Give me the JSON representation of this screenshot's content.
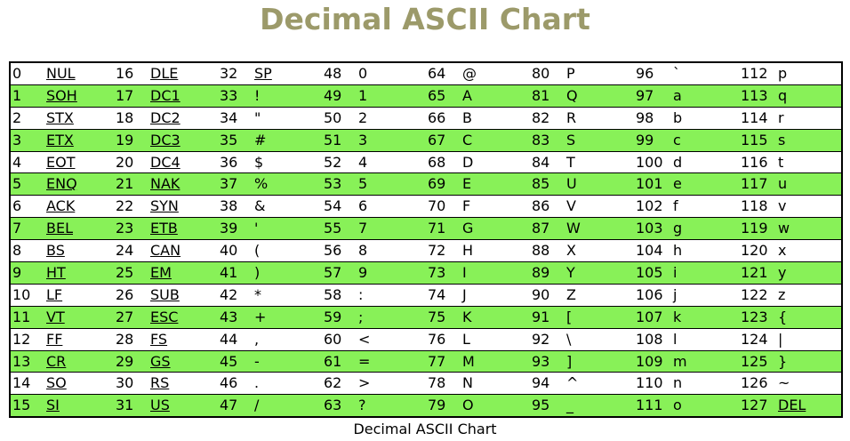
{
  "title": "Decimal ASCII Chart",
  "caption": "Decimal ASCII Chart",
  "colors": {
    "title": "#9c9a6a",
    "stripe": "#88f158",
    "border": "#000000"
  },
  "rows": [
    [
      [
        "0",
        "NUL"
      ],
      [
        "16",
        "DLE"
      ],
      [
        "32",
        "SP"
      ],
      [
        "48",
        "0"
      ],
      [
        "64",
        "@"
      ],
      [
        "80",
        "P"
      ],
      [
        "96",
        "`"
      ],
      [
        "112",
        "p"
      ]
    ],
    [
      [
        "1",
        "SOH"
      ],
      [
        "17",
        "DC1"
      ],
      [
        "33",
        "!"
      ],
      [
        "49",
        "1"
      ],
      [
        "65",
        "A"
      ],
      [
        "81",
        "Q"
      ],
      [
        "97",
        "a"
      ],
      [
        "113",
        "q"
      ]
    ],
    [
      [
        "2",
        "STX"
      ],
      [
        "18",
        "DC2"
      ],
      [
        "34",
        "\""
      ],
      [
        "50",
        "2"
      ],
      [
        "66",
        "B"
      ],
      [
        "82",
        "R"
      ],
      [
        "98",
        "b"
      ],
      [
        "114",
        "r"
      ]
    ],
    [
      [
        "3",
        "ETX"
      ],
      [
        "19",
        "DC3"
      ],
      [
        "35",
        "#"
      ],
      [
        "51",
        "3"
      ],
      [
        "67",
        "C"
      ],
      [
        "83",
        "S"
      ],
      [
        "99",
        "c"
      ],
      [
        "115",
        "s"
      ]
    ],
    [
      [
        "4",
        "EOT"
      ],
      [
        "20",
        "DC4"
      ],
      [
        "36",
        "$"
      ],
      [
        "52",
        "4"
      ],
      [
        "68",
        "D"
      ],
      [
        "84",
        "T"
      ],
      [
        "100",
        "d"
      ],
      [
        "116",
        "t"
      ]
    ],
    [
      [
        "5",
        "ENQ"
      ],
      [
        "21",
        "NAK"
      ],
      [
        "37",
        "%"
      ],
      [
        "53",
        "5"
      ],
      [
        "69",
        "E"
      ],
      [
        "85",
        "U"
      ],
      [
        "101",
        "e"
      ],
      [
        "117",
        "u"
      ]
    ],
    [
      [
        "6",
        "ACK"
      ],
      [
        "22",
        "SYN"
      ],
      [
        "38",
        "&"
      ],
      [
        "54",
        "6"
      ],
      [
        "70",
        "F"
      ],
      [
        "86",
        "V"
      ],
      [
        "102",
        "f"
      ],
      [
        "118",
        "v"
      ]
    ],
    [
      [
        "7",
        "BEL"
      ],
      [
        "23",
        "ETB"
      ],
      [
        "39",
        "'"
      ],
      [
        "55",
        "7"
      ],
      [
        "71",
        "G"
      ],
      [
        "87",
        "W"
      ],
      [
        "103",
        "g"
      ],
      [
        "119",
        "w"
      ]
    ],
    [
      [
        "8",
        "BS"
      ],
      [
        "24",
        "CAN"
      ],
      [
        "40",
        "("
      ],
      [
        "56",
        "8"
      ],
      [
        "72",
        "H"
      ],
      [
        "88",
        "X"
      ],
      [
        "104",
        "h"
      ],
      [
        "120",
        "x"
      ]
    ],
    [
      [
        "9",
        "HT"
      ],
      [
        "25",
        "EM"
      ],
      [
        "41",
        ")"
      ],
      [
        "57",
        "9"
      ],
      [
        "73",
        "I"
      ],
      [
        "89",
        "Y"
      ],
      [
        "105",
        "i"
      ],
      [
        "121",
        "y"
      ]
    ],
    [
      [
        "10",
        "LF"
      ],
      [
        "26",
        "SUB"
      ],
      [
        "42",
        "*"
      ],
      [
        "58",
        ":"
      ],
      [
        "74",
        "J"
      ],
      [
        "90",
        "Z"
      ],
      [
        "106",
        "j"
      ],
      [
        "122",
        "z"
      ]
    ],
    [
      [
        "11",
        "VT"
      ],
      [
        "27",
        "ESC"
      ],
      [
        "43",
        "+"
      ],
      [
        "59",
        ";"
      ],
      [
        "75",
        "K"
      ],
      [
        "91",
        "["
      ],
      [
        "107",
        "k"
      ],
      [
        "123",
        "{"
      ]
    ],
    [
      [
        "12",
        "FF"
      ],
      [
        "28",
        "FS"
      ],
      [
        "44",
        ","
      ],
      [
        "60",
        "<"
      ],
      [
        "76",
        "L"
      ],
      [
        "92",
        "\\"
      ],
      [
        "108",
        "l"
      ],
      [
        "124",
        "|"
      ]
    ],
    [
      [
        "13",
        "CR"
      ],
      [
        "29",
        "GS"
      ],
      [
        "45",
        "-"
      ],
      [
        "61",
        "="
      ],
      [
        "77",
        "M"
      ],
      [
        "93",
        "]"
      ],
      [
        "109",
        "m"
      ],
      [
        "125",
        "}"
      ]
    ],
    [
      [
        "14",
        "SO"
      ],
      [
        "30",
        "RS"
      ],
      [
        "46",
        "."
      ],
      [
        "62",
        ">"
      ],
      [
        "78",
        "N"
      ],
      [
        "94",
        "^"
      ],
      [
        "110",
        "n"
      ],
      [
        "126",
        "~"
      ]
    ],
    [
      [
        "15",
        "SI"
      ],
      [
        "31",
        "US"
      ],
      [
        "47",
        "/"
      ],
      [
        "63",
        "?"
      ],
      [
        "79",
        "O"
      ],
      [
        "95",
        "_"
      ],
      [
        "111",
        "o"
      ],
      [
        "127",
        "DEL"
      ]
    ]
  ],
  "control_codes": [
    "NUL",
    "SOH",
    "STX",
    "ETX",
    "EOT",
    "ENQ",
    "ACK",
    "BEL",
    "BS",
    "HT",
    "LF",
    "VT",
    "FF",
    "CR",
    "SO",
    "SI",
    "DLE",
    "DC1",
    "DC2",
    "DC3",
    "DC4",
    "NAK",
    "SYN",
    "ETB",
    "CAN",
    "EM",
    "SUB",
    "ESC",
    "FS",
    "GS",
    "RS",
    "US",
    "SP",
    "DEL"
  ]
}
